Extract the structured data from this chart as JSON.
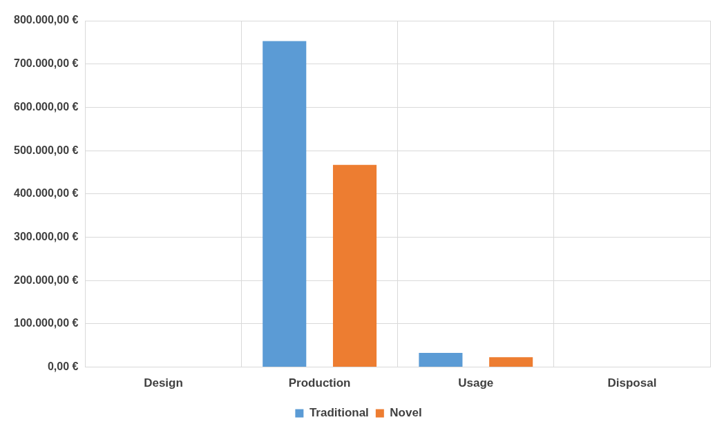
{
  "chart_data": {
    "type": "bar",
    "categories": [
      "Design",
      "Production",
      "Usage",
      "Disposal"
    ],
    "series": [
      {
        "name": "Traditional",
        "color": "#5b9bd5",
        "values": [
          0,
          753000,
          33000,
          0
        ]
      },
      {
        "name": "Novel",
        "color": "#ed7d31",
        "values": [
          0,
          467000,
          23000,
          0
        ]
      }
    ],
    "ylim": [
      0,
      800000
    ],
    "yticks": [
      {
        "value": 0,
        "label": "0,00 €"
      },
      {
        "value": 100000,
        "label": "100.000,00 €"
      },
      {
        "value": 200000,
        "label": "200.000,00 €"
      },
      {
        "value": 300000,
        "label": "300.000,00 €"
      },
      {
        "value": 400000,
        "label": "400.000,00 €"
      },
      {
        "value": 500000,
        "label": "500.000,00 €"
      },
      {
        "value": 600000,
        "label": "600.000,00 €"
      },
      {
        "value": 700000,
        "label": "700.000,00 €"
      },
      {
        "value": 800000,
        "label": "800.000,00 €"
      }
    ],
    "grid": true,
    "legend": "bottom"
  }
}
